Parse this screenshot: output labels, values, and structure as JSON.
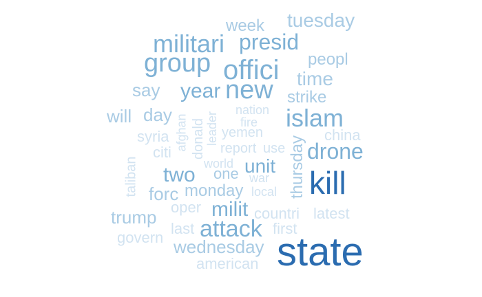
{
  "palette": {
    "darkest": "#2b6cb0",
    "dark": "#4a8bc4",
    "medium": "#7eb1d5",
    "light": "#a9cbe4",
    "lightest": "#d2e3f1"
  },
  "words": [
    {
      "id": "state",
      "text": "state",
      "tone": "darkest"
    },
    {
      "id": "kill",
      "text": "kill",
      "tone": "darkest"
    },
    {
      "id": "offici",
      "text": "offici",
      "tone": "medium"
    },
    {
      "id": "new",
      "text": "new",
      "tone": "medium"
    },
    {
      "id": "group",
      "text": "group",
      "tone": "medium"
    },
    {
      "id": "militari",
      "text": "militari",
      "tone": "medium"
    },
    {
      "id": "islam",
      "text": "islam",
      "tone": "medium"
    },
    {
      "id": "attack",
      "text": "attack",
      "tone": "medium"
    },
    {
      "id": "presid",
      "text": "presid",
      "tone": "medium"
    },
    {
      "id": "drone",
      "text": "drone",
      "tone": "medium"
    },
    {
      "id": "tuesday",
      "text": "tuesday",
      "tone": "light"
    },
    {
      "id": "year",
      "text": "year",
      "tone": "medium"
    },
    {
      "id": "two",
      "text": "two",
      "tone": "medium"
    },
    {
      "id": "milit",
      "text": "milit",
      "tone": "medium"
    },
    {
      "id": "wednesday",
      "text": "wednesday",
      "tone": "light"
    },
    {
      "id": "unit",
      "text": "unit",
      "tone": "medium"
    },
    {
      "id": "time",
      "text": "time",
      "tone": "light"
    },
    {
      "id": "thursday",
      "text": "thursday",
      "tone": "light"
    },
    {
      "id": "monday",
      "text": "monday",
      "tone": "light"
    },
    {
      "id": "forc",
      "text": "forc",
      "tone": "light"
    },
    {
      "id": "trump",
      "text": "trump",
      "tone": "light"
    },
    {
      "id": "will",
      "text": "will",
      "tone": "light"
    },
    {
      "id": "day",
      "text": "day",
      "tone": "light"
    },
    {
      "id": "say",
      "text": "say",
      "tone": "light"
    },
    {
      "id": "week",
      "text": "week",
      "tone": "light"
    },
    {
      "id": "peopl",
      "text": "peopl",
      "tone": "light"
    },
    {
      "id": "strike",
      "text": "strike",
      "tone": "light"
    },
    {
      "id": "one",
      "text": "one",
      "tone": "light"
    },
    {
      "id": "american",
      "text": "american",
      "tone": "lightest"
    },
    {
      "id": "govern",
      "text": "govern",
      "tone": "lightest"
    },
    {
      "id": "countri",
      "text": "countri",
      "tone": "lightest"
    },
    {
      "id": "latest",
      "text": "latest",
      "tone": "lightest"
    },
    {
      "id": "first",
      "text": "first",
      "tone": "lightest"
    },
    {
      "id": "last",
      "text": "last",
      "tone": "lightest"
    },
    {
      "id": "oper",
      "text": "oper",
      "tone": "lightest"
    },
    {
      "id": "local",
      "text": "local",
      "tone": "lightest"
    },
    {
      "id": "war",
      "text": "war",
      "tone": "lightest"
    },
    {
      "id": "world",
      "text": "world",
      "tone": "lightest"
    },
    {
      "id": "report",
      "text": "report",
      "tone": "lightest"
    },
    {
      "id": "use",
      "text": "use",
      "tone": "lightest"
    },
    {
      "id": "yemen",
      "text": "yemen",
      "tone": "lightest"
    },
    {
      "id": "fire",
      "text": "fire",
      "tone": "lightest"
    },
    {
      "id": "nation",
      "text": "nation",
      "tone": "lightest"
    },
    {
      "id": "china",
      "text": "china",
      "tone": "lightest"
    },
    {
      "id": "syria",
      "text": "syria",
      "tone": "lightest"
    },
    {
      "id": "citi",
      "text": "citi",
      "tone": "lightest"
    },
    {
      "id": "afghan",
      "text": "afghan",
      "tone": "lightest"
    },
    {
      "id": "donald",
      "text": "donald",
      "tone": "lightest"
    },
    {
      "id": "leader",
      "text": "leader",
      "tone": "lightest"
    },
    {
      "id": "taliban",
      "text": "taliban",
      "tone": "lightest"
    }
  ]
}
